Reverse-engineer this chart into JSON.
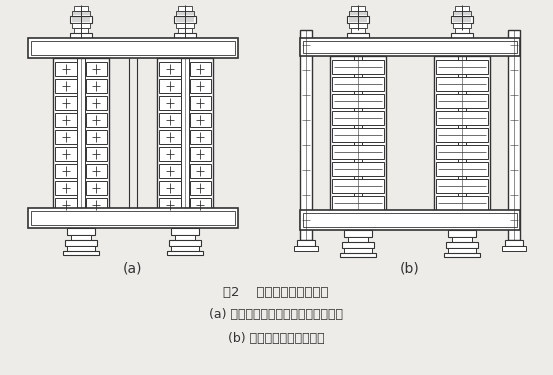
{
  "bg_color": "#eeece8",
  "line_color": "#333333",
  "title_text": "图2    铁心式电抗器的铁心",
  "caption_a": "(a) 拉紧螺杆穿过铁心柱与线组之间；",
  "caption_b": "(b) 拉紧螺杆位于绕组外面",
  "label_a": "(a)",
  "label_b": "(b)",
  "fig_width": 5.53,
  "fig_height": 3.75,
  "dpi": 100
}
